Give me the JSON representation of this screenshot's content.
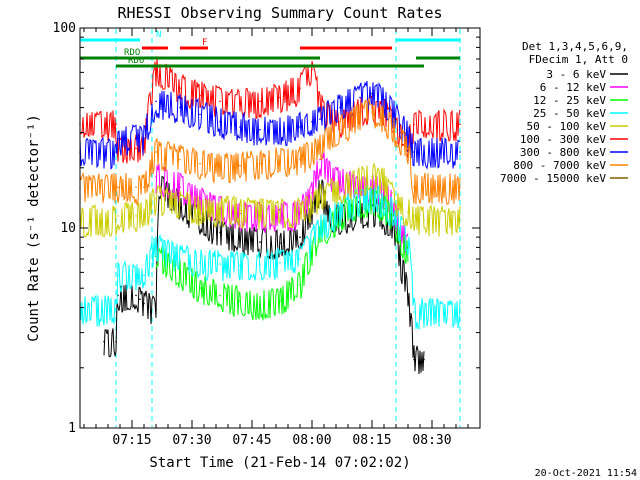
{
  "chart_data": {
    "type": "line",
    "title": "RHESSI Observing Summary Count Rates",
    "xlabel": "Start Time (21-Feb-14 07:02:02)",
    "ylabel": "Count Rate (s⁻¹ detector⁻¹)",
    "yscale": "log",
    "ylim": [
      1,
      100
    ],
    "xlim_minutes": [
      0,
      100
    ],
    "x_ticks": [
      {
        "label": "07:15",
        "t": 13
      },
      {
        "label": "07:30",
        "t": 28
      },
      {
        "label": "07:45",
        "t": 43
      },
      {
        "label": "08:00",
        "t": 58
      },
      {
        "label": "08:15",
        "t": 73
      },
      {
        "label": "08:30",
        "t": 88
      }
    ],
    "y_ticks": [
      {
        "label": "1",
        "value": 1
      },
      {
        "label": "10",
        "value": 10
      },
      {
        "label": "100",
        "value": 100
      }
    ],
    "legend_header": [
      "Det 1,3,4,5,6,9,",
      "FDecim 1, Att 0"
    ],
    "legend_placement": "top-right",
    "series": [
      {
        "name": "3 - 6 keV",
        "color": "#000000",
        "points": [
          [
            6,
            2.7
          ],
          [
            9,
            2.7
          ],
          [
            9.5,
            4.6
          ],
          [
            14,
            4.6
          ],
          [
            15,
            4.4
          ],
          [
            16,
            4.2
          ],
          [
            19,
            3.9
          ],
          [
            20,
            16
          ],
          [
            25,
            13
          ],
          [
            30,
            11
          ],
          [
            35,
            9.5
          ],
          [
            40,
            8.8
          ],
          [
            45,
            8.5
          ],
          [
            50,
            8.4
          ],
          [
            55,
            9.0
          ],
          [
            58,
            12
          ],
          [
            60,
            16
          ],
          [
            62,
            12
          ],
          [
            65,
            11
          ],
          [
            70,
            12
          ],
          [
            75,
            12
          ],
          [
            78,
            10
          ],
          [
            80,
            7
          ],
          [
            82,
            4.5
          ],
          [
            83.5,
            2.2
          ],
          [
            86,
            2.2
          ]
        ]
      },
      {
        "name": "6 - 12 keV",
        "color": "#ff00ff",
        "points": [
          [
            19,
            18
          ],
          [
            25,
            16
          ],
          [
            30,
            14
          ],
          [
            35,
            12.5
          ],
          [
            40,
            11.8
          ],
          [
            45,
            11.5
          ],
          [
            50,
            11.3
          ],
          [
            55,
            11.8
          ],
          [
            58,
            15
          ],
          [
            60,
            22
          ],
          [
            62,
            19
          ],
          [
            65,
            17
          ],
          [
            70,
            16
          ],
          [
            75,
            15.5
          ],
          [
            78,
            13
          ],
          [
            80,
            10
          ],
          [
            82,
            8
          ]
        ]
      },
      {
        "name": "12 - 25 keV",
        "color": "#00ff00",
        "points": [
          [
            19,
            7.2
          ],
          [
            25,
            6.0
          ],
          [
            30,
            5.0
          ],
          [
            35,
            4.6
          ],
          [
            40,
            4.3
          ],
          [
            45,
            4.2
          ],
          [
            50,
            4.3
          ],
          [
            55,
            5.2
          ],
          [
            58,
            7.5
          ],
          [
            60,
            9.5
          ],
          [
            65,
            11.5
          ],
          [
            70,
            13.5
          ],
          [
            73,
            13.8
          ],
          [
            76,
            12.5
          ],
          [
            78,
            11
          ],
          [
            80,
            9.0
          ],
          [
            82,
            7.5
          ]
        ]
      },
      {
        "name": "25 - 50 keV",
        "color": "#00ffff",
        "points": [
          [
            0,
            3.9
          ],
          [
            9,
            3.9
          ],
          [
            9.5,
            5.8
          ],
          [
            14,
            5.8
          ],
          [
            16,
            5.8
          ],
          [
            19,
            8.0
          ],
          [
            25,
            7.0
          ],
          [
            30,
            6.7
          ],
          [
            35,
            6.6
          ],
          [
            40,
            6.5
          ],
          [
            45,
            6.6
          ],
          [
            50,
            6.7
          ],
          [
            55,
            7.0
          ],
          [
            58,
            8.5
          ],
          [
            60,
            10
          ],
          [
            65,
            12
          ],
          [
            70,
            14
          ],
          [
            73,
            14.5
          ],
          [
            76,
            13.5
          ],
          [
            78,
            12
          ],
          [
            80,
            10
          ],
          [
            82,
            8.5
          ],
          [
            83.5,
            3.8
          ],
          [
            95,
            3.8
          ]
        ]
      },
      {
        "name": "50 - 100 keV",
        "color": "#cccc00",
        "points": [
          [
            0,
            11
          ],
          [
            9,
            11
          ],
          [
            9.5,
            11.5
          ],
          [
            14,
            11.5
          ],
          [
            16,
            11.5
          ],
          [
            19,
            14
          ],
          [
            25,
            13
          ],
          [
            30,
            12.5
          ],
          [
            35,
            12.3
          ],
          [
            40,
            12.2
          ],
          [
            45,
            12
          ],
          [
            50,
            12
          ],
          [
            55,
            12.3
          ],
          [
            58,
            13
          ],
          [
            60,
            14
          ],
          [
            65,
            16
          ],
          [
            70,
            17.5
          ],
          [
            73,
            18
          ],
          [
            76,
            17
          ],
          [
            78,
            15
          ],
          [
            80,
            13
          ],
          [
            82,
            12
          ],
          [
            83.5,
            11.5
          ],
          [
            86,
            11
          ],
          [
            95,
            11
          ]
        ]
      },
      {
        "name": "100 - 300 keV",
        "color": "#ff0000",
        "points": [
          [
            0,
            33
          ],
          [
            9,
            33
          ],
          [
            9.5,
            25
          ],
          [
            14,
            25
          ],
          [
            16,
            25
          ],
          [
            19,
            62
          ],
          [
            25,
            50
          ],
          [
            30,
            46
          ],
          [
            35,
            43
          ],
          [
            40,
            42
          ],
          [
            45,
            43
          ],
          [
            50,
            45
          ],
          [
            55,
            50
          ],
          [
            58,
            62
          ],
          [
            60,
            40
          ],
          [
            65,
            34
          ],
          [
            70,
            38
          ],
          [
            73,
            40
          ],
          [
            76,
            38
          ],
          [
            78,
            34
          ],
          [
            80,
            30
          ],
          [
            82,
            27
          ],
          [
            83.5,
            33
          ],
          [
            95,
            33
          ]
        ]
      },
      {
        "name": "300 - 800 keV",
        "color": "#0000ff",
        "points": [
          [
            0,
            24
          ],
          [
            9,
            24
          ],
          [
            9.5,
            28
          ],
          [
            14,
            28
          ],
          [
            16,
            28
          ],
          [
            19,
            43
          ],
          [
            25,
            40
          ],
          [
            30,
            37
          ],
          [
            35,
            34
          ],
          [
            40,
            32
          ],
          [
            45,
            31
          ],
          [
            50,
            31
          ],
          [
            55,
            32
          ],
          [
            58,
            34
          ],
          [
            60,
            35
          ],
          [
            65,
            40
          ],
          [
            70,
            45
          ],
          [
            73,
            47
          ],
          [
            76,
            44
          ],
          [
            78,
            39
          ],
          [
            80,
            33
          ],
          [
            82,
            29
          ],
          [
            83.5,
            24
          ],
          [
            95,
            24
          ]
        ]
      },
      {
        "name": "800 - 7000 keV",
        "color": "#ff8000",
        "points": [
          [
            0,
            16
          ],
          [
            9,
            16
          ],
          [
            9.5,
            16
          ],
          [
            14,
            16
          ],
          [
            16,
            16
          ],
          [
            19,
            24
          ],
          [
            25,
            22
          ],
          [
            30,
            21
          ],
          [
            35,
            20.5
          ],
          [
            40,
            20.5
          ],
          [
            45,
            21
          ],
          [
            50,
            21.5
          ],
          [
            55,
            22
          ],
          [
            58,
            24
          ],
          [
            60,
            26
          ],
          [
            65,
            31
          ],
          [
            70,
            36
          ],
          [
            73,
            38
          ],
          [
            76,
            36
          ],
          [
            78,
            32
          ],
          [
            80,
            28
          ],
          [
            82,
            25
          ],
          [
            83.5,
            16
          ],
          [
            95,
            16
          ]
        ]
      },
      {
        "name": "7000 - 15000 keV",
        "color": "#806000",
        "points": []
      }
    ],
    "flags": [
      {
        "label": "N",
        "color": "#00ffff",
        "intervals": [
          [
            0,
            15
          ],
          [
            79,
            95
          ]
        ]
      },
      {
        "label": "F",
        "color": "#ff0000",
        "intervals": [
          [
            15.5,
            22
          ],
          [
            25,
            32
          ],
          [
            55,
            78
          ]
        ]
      },
      {
        "label": "RDO",
        "color": "#008000",
        "intervals": [
          [
            0,
            18
          ],
          [
            18,
            60
          ],
          [
            84,
            95
          ]
        ]
      },
      {
        "label": "RD6",
        "color": "#008000",
        "intervals": [
          [
            9,
            86
          ]
        ]
      }
    ],
    "night_boundaries": [
      9,
      79
    ],
    "saa_boundaries": [
      18,
      95
    ]
  },
  "footer": {
    "timestamp": "20-Oct-2021 11:54"
  }
}
